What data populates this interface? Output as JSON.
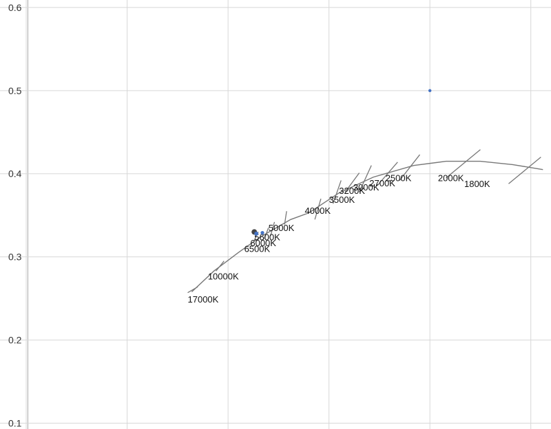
{
  "chart_data": {
    "type": "scatter",
    "title": "",
    "xlabel": "",
    "ylabel": "",
    "xlim": [
      0.137,
      0.41
    ],
    "ylim": [
      0.093,
      0.609
    ],
    "x_ticks": [
      0.15,
      0.2,
      0.25,
      0.3,
      0.35,
      0.4
    ],
    "y_ticks": [
      0.1,
      0.2,
      0.3,
      0.4,
      0.5,
      0.6
    ],
    "y_tick_labels": [
      "0.1",
      "0.2",
      "0.3",
      "0.4",
      "0.5",
      "0.6"
    ],
    "grid": true,
    "legend": "none",
    "colors": {
      "locus": "#777777",
      "points": "#4472c4",
      "dark_point": "#444444",
      "grid": "#d7d7d7"
    },
    "locus": {
      "x": [
        0.232,
        0.243,
        0.255,
        0.266,
        0.281,
        0.29,
        0.305,
        0.322,
        0.342,
        0.358,
        0.375,
        0.391,
        0.406
      ],
      "y": [
        0.258,
        0.283,
        0.305,
        0.324,
        0.345,
        0.353,
        0.377,
        0.396,
        0.41,
        0.415,
        0.415,
        0.411,
        0.405
      ]
    },
    "isotemperature_lines": [
      {
        "label": "17000K",
        "x1": 0.23,
        "y1": 0.257,
        "x2": 0.235,
        "y2": 0.264
      },
      {
        "label": "10000K",
        "x1": 0.244,
        "y1": 0.283,
        "x2": 0.248,
        "y2": 0.295
      },
      {
        "label": "6500K",
        "x1": 0.263,
        "y1": 0.32,
        "x2": 0.265,
        "y2": 0.33
      },
      {
        "label": "6000K",
        "x1": 0.268,
        "y1": 0.322,
        "x2": 0.27,
        "y2": 0.335
      },
      {
        "label": "5600K",
        "x1": 0.271,
        "y1": 0.325,
        "x2": 0.273,
        "y2": 0.342
      },
      {
        "label": "5000K",
        "x1": 0.278,
        "y1": 0.339,
        "x2": 0.279,
        "y2": 0.355
      },
      {
        "label": "4000K",
        "x1": 0.293,
        "y1": 0.345,
        "x2": 0.296,
        "y2": 0.37
      },
      {
        "label": "3500K",
        "x1": 0.302,
        "y1": 0.364,
        "x2": 0.306,
        "y2": 0.392
      },
      {
        "label": "3200K",
        "x1": 0.308,
        "y1": 0.378,
        "x2": 0.315,
        "y2": 0.401
      },
      {
        "label": "3000K",
        "x1": 0.315,
        "y1": 0.378,
        "x2": 0.321,
        "y2": 0.41
      },
      {
        "label": "2700K",
        "x1": 0.324,
        "y1": 0.386,
        "x2": 0.334,
        "y2": 0.414
      },
      {
        "label": "2500K",
        "x1": 0.335,
        "y1": 0.392,
        "x2": 0.345,
        "y2": 0.423
      },
      {
        "label": "2000K",
        "x1": 0.358,
        "y1": 0.395,
        "x2": 0.375,
        "y2": 0.429
      },
      {
        "label": "1800K",
        "x1": 0.389,
        "y1": 0.388,
        "x2": 0.405,
        "y2": 0.42
      }
    ],
    "cct_labels": [
      {
        "text": "17000K",
        "x": 0.23,
        "y": 0.245
      },
      {
        "text": "10000K",
        "x": 0.24,
        "y": 0.273
      },
      {
        "text": "6500K",
        "x": 0.258,
        "y": 0.306
      },
      {
        "text": "6000K",
        "x": 0.261,
        "y": 0.313
      },
      {
        "text": "5600K",
        "x": 0.263,
        "y": 0.32
      },
      {
        "text": "5000K",
        "x": 0.27,
        "y": 0.331
      },
      {
        "text": "4000K",
        "x": 0.288,
        "y": 0.352
      },
      {
        "text": "3500K",
        "x": 0.3,
        "y": 0.365
      },
      {
        "text": "3200K",
        "x": 0.305,
        "y": 0.376
      },
      {
        "text": "3000K",
        "x": 0.312,
        "y": 0.38
      },
      {
        "text": "2700K",
        "x": 0.32,
        "y": 0.385
      },
      {
        "text": "2500K",
        "x": 0.328,
        "y": 0.391
      },
      {
        "text": "2000K",
        "x": 0.354,
        "y": 0.391
      },
      {
        "text": "1800K",
        "x": 0.367,
        "y": 0.384
      }
    ],
    "points": [
      {
        "x": 0.35,
        "y": 0.5,
        "color": "#4472c4",
        "r": 2.2
      },
      {
        "x": 0.263,
        "y": 0.33,
        "color": "#444444",
        "r": 4
      },
      {
        "x": 0.264,
        "y": 0.328,
        "color": "#4472c4",
        "r": 3
      },
      {
        "x": 0.267,
        "y": 0.329,
        "color": "#4472c4",
        "r": 2.6
      }
    ]
  }
}
